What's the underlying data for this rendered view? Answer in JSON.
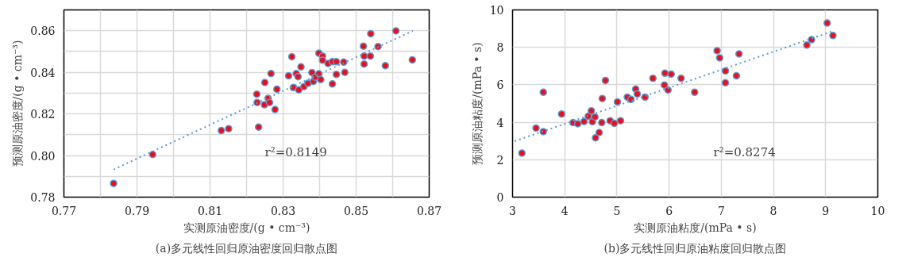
{
  "chart_data": [
    {
      "type": "scatter",
      "xlabel": "实测原油密度/(g • cm⁻³)",
      "ylabel": "预测原油密度/(g • cm⁻³)",
      "xlim": [
        0.77,
        0.87
      ],
      "ylim": [
        0.78,
        0.87
      ],
      "xticks": [
        0.77,
        {
          "value": 0.78,
          "label": null
        },
        0.79,
        {
          "value": 0.8,
          "label": null
        },
        0.81,
        {
          "value": 0.82,
          "label": null
        },
        0.83,
        {
          "value": 0.84,
          "label": null
        },
        0.85,
        {
          "value": 0.86,
          "label": null
        },
        0.87
      ],
      "yticks": [
        0.78,
        {
          "value": 0.79,
          "label": null
        },
        {
          "value": 0.8,
          "label": "0.80"
        },
        {
          "value": 0.81,
          "label": null
        },
        0.82,
        {
          "value": 0.83,
          "label": null
        },
        0.84,
        {
          "value": 0.85,
          "label": null
        },
        0.86,
        {
          "value": 0.87,
          "label": null
        }
      ],
      "grid": true,
      "annotations": [
        "r²=0.8149",
        "(a)多元线性回归原油密度回归散点图"
      ],
      "series": [
        {
          "type": "scatter",
          "color": "#e8101a",
          "marker": "circle",
          "x": [
            0.7836,
            0.7943,
            0.8131,
            0.8151,
            0.8233,
            0.8228,
            0.8229,
            0.825,
            0.8267,
            0.8249,
            0.8259,
            0.8263,
            0.8283,
            0.8278,
            0.8315,
            0.8324,
            0.8336,
            0.8341,
            0.8349,
            0.8328,
            0.8343,
            0.8357,
            0.8368,
            0.8379,
            0.8383,
            0.8388,
            0.8398,
            0.8403,
            0.8398,
            0.8408,
            0.8408,
            0.8423,
            0.8435,
            0.8446,
            0.8466,
            0.8435,
            0.8446,
            0.8469,
            0.852,
            0.854,
            0.8522,
            0.8539,
            0.8522,
            0.856,
            0.858,
            0.8609,
            0.8654
          ],
          "values": [
            0.7866,
            0.8005,
            0.812,
            0.8129,
            0.8137,
            0.8295,
            0.8255,
            0.8351,
            0.8394,
            0.8244,
            0.8275,
            0.8255,
            0.8319,
            0.8221,
            0.8383,
            0.8475,
            0.8394,
            0.8379,
            0.8426,
            0.8327,
            0.8316,
            0.8331,
            0.8347,
            0.8399,
            0.8356,
            0.8377,
            0.8393,
            0.8365,
            0.8492,
            0.8478,
            0.8458,
            0.8443,
            0.8451,
            0.8451,
            0.8449,
            0.8344,
            0.839,
            0.84,
            0.8526,
            0.8586,
            0.8478,
            0.8478,
            0.844,
            0.8524,
            0.8432,
            0.8599,
            0.846
          ]
        },
        {
          "type": "line",
          "color": "#5b9bd5",
          "line_style": "dotted",
          "marker": "none",
          "x": [
            0.7836,
            0.8655
          ],
          "values": [
            0.7933,
            0.8599
          ]
        }
      ]
    },
    {
      "type": "scatter",
      "xlabel": "实测原油粘度/(mPa • s)",
      "ylabel": "预测原油粘度/(mPa • s)",
      "xlim": [
        3,
        10
      ],
      "ylim": [
        0,
        10
      ],
      "xticks": [
        3,
        4,
        5,
        6,
        7,
        8,
        9,
        10
      ],
      "yticks": [
        0,
        2,
        4,
        6,
        8,
        10
      ],
      "grid": true,
      "annotations": [
        "r²=0.8274",
        "(b)多元线性回归原油粘度回归散点图"
      ],
      "series": [
        {
          "type": "scatter",
          "color": "#e8101a",
          "marker": "circle",
          "x": [
            3.18,
            3.45,
            3.59,
            3.59,
            3.94,
            4.16,
            4.25,
            4.37,
            4.45,
            4.51,
            4.53,
            4.58,
            4.59,
            4.66,
            4.71,
            4.72,
            4.78,
            4.87,
            4.95,
            5.01,
            5.07,
            5.2,
            5.27,
            5.36,
            5.39,
            5.54,
            5.69,
            5.91,
            5.92,
            5.98,
            6.04,
            6.23,
            6.49,
            6.92,
            6.97,
            7.08,
            7.08,
            7.29,
            7.34,
            8.64,
            8.73,
            9.03,
            9.14
          ],
          "values": [
            2.35,
            3.69,
            3.5,
            5.6,
            4.44,
            3.98,
            3.92,
            4.04,
            4.32,
            4.61,
            4.03,
            4.28,
            3.17,
            3.45,
            3.98,
            5.27,
            6.23,
            4.08,
            3.94,
            5.09,
            4.08,
            5.34,
            5.22,
            5.77,
            5.51,
            5.34,
            6.35,
            5.99,
            6.62,
            5.72,
            6.57,
            6.35,
            5.6,
            7.82,
            7.44,
            6.74,
            6.11,
            6.48,
            7.65,
            8.12,
            8.41,
            9.3,
            8.63
          ]
        },
        {
          "type": "line",
          "color": "#5b9bd5",
          "line_style": "dotted",
          "marker": "none",
          "x": [
            3.04,
            9.11
          ],
          "values": [
            2.99,
            8.84
          ]
        }
      ]
    }
  ]
}
